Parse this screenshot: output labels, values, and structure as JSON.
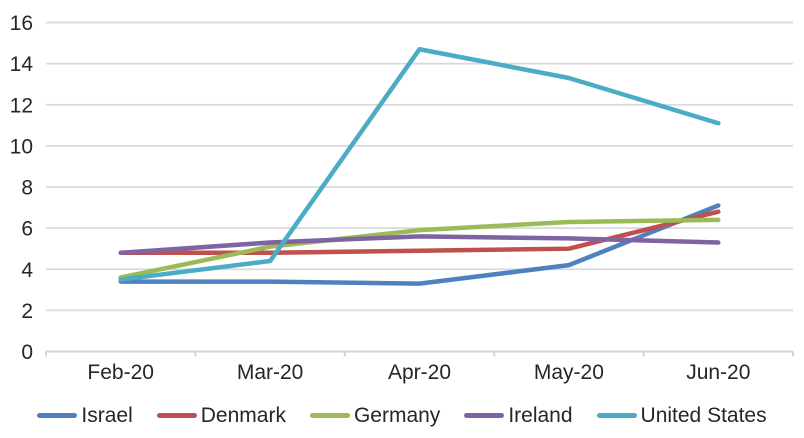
{
  "chart_data": {
    "type": "line",
    "title": "",
    "xlabel": "",
    "ylabel": "",
    "categories": [
      "Feb-20",
      "Mar-20",
      "Apr-20",
      "May-20",
      "Jun-20"
    ],
    "series": [
      {
        "name": "Israel",
        "color": "#4F81BD",
        "values": [
          3.4,
          3.4,
          3.3,
          4.2,
          7.1
        ]
      },
      {
        "name": "Denmark",
        "color": "#C0504D",
        "values": [
          4.8,
          4.8,
          4.9,
          5.0,
          6.8
        ]
      },
      {
        "name": "Germany",
        "color": "#9BBB59",
        "values": [
          3.6,
          5.1,
          5.9,
          6.3,
          6.4
        ]
      },
      {
        "name": "Ireland",
        "color": "#8064A2",
        "values": [
          4.8,
          5.3,
          5.6,
          5.5,
          5.3
        ]
      },
      {
        "name": "United States",
        "color": "#4BACC6",
        "values": [
          3.5,
          4.4,
          14.7,
          13.3,
          11.1
        ]
      }
    ],
    "ylim": [
      0,
      16
    ],
    "yticks": [
      0,
      2,
      4,
      6,
      8,
      10,
      12,
      14,
      16
    ],
    "grid": true,
    "legend_position": "bottom",
    "gridline_color": "#D9D9D9",
    "axis_color": "#D3D3D3",
    "text_color": "#262626",
    "background_color": "#FFFFFF"
  }
}
